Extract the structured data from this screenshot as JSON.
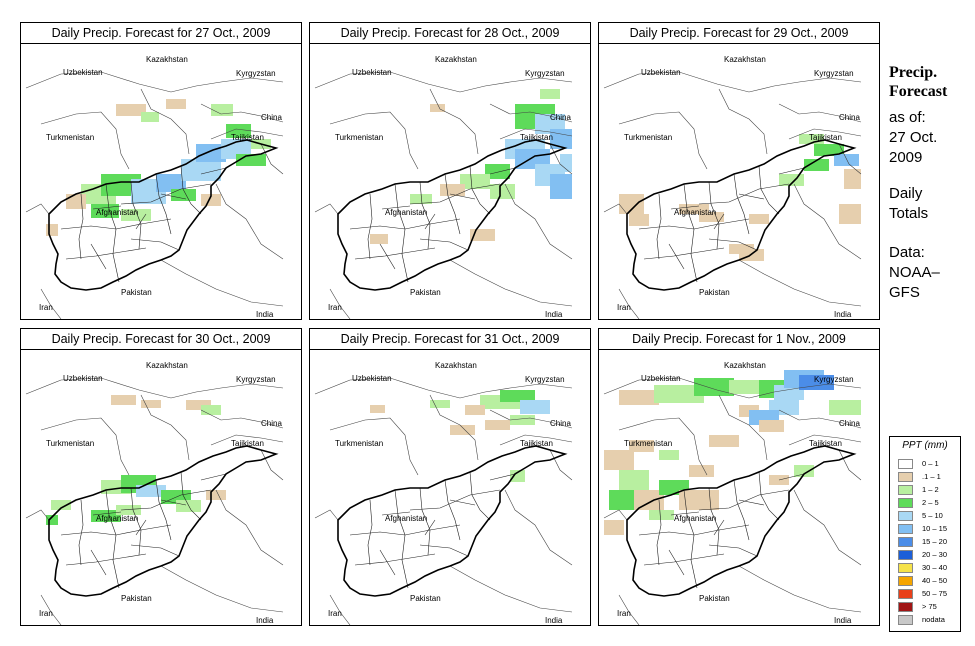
{
  "panels": [
    {
      "title": "Daily Precip. Forecast for  27 Oct., 2009",
      "intensity": "high-center"
    },
    {
      "title": "Daily Precip. Forecast for  28 Oct., 2009",
      "intensity": "northeast"
    },
    {
      "title": "Daily Precip. Forecast for  29 Oct., 2009",
      "intensity": "light"
    },
    {
      "title": "Daily Precip. Forecast for  30 Oct., 2009",
      "intensity": "center"
    },
    {
      "title": "Daily Precip. Forecast for  31 Oct., 2009",
      "intensity": "north-light"
    },
    {
      "title": "Daily Precip. Forecast for  1 Nov., 2009",
      "intensity": "north-heavy"
    }
  ],
  "country_labels": {
    "kazakhstan": "Kazakhstan",
    "uzbekistan": "Uzbekistan",
    "kyrgyzstan": "Kyrgyzstan",
    "china": "China",
    "turkmenistan": "Turkmenistan",
    "tajikistan": "Tajikistan",
    "afghanistan": "Afghanistan",
    "iran": "Iran",
    "pakistan": "Pakistan",
    "india": "India"
  },
  "sidebar": {
    "title_line1": "Precip.",
    "title_line2": "Forecast",
    "asof_line1": "as of:",
    "asof_line2": "27 Oct.",
    "asof_line3": "2009",
    "totals_line1": "Daily",
    "totals_line2": "Totals",
    "data_line1": "Data:",
    "data_line2": "NOAA–",
    "data_line3": "GFS"
  },
  "legend": {
    "title": "PPT (mm)",
    "items": [
      {
        "label": "0 – 1",
        "color": "#ffffff"
      },
      {
        "label": ".1 – 1",
        "color": "#e6cfae"
      },
      {
        "label": "1 – 2",
        "color": "#b8efa0"
      },
      {
        "label": "2 – 5",
        "color": "#5edb5a"
      },
      {
        "label": "5 – 10",
        "color": "#a9d8f4"
      },
      {
        "label": "10 – 15",
        "color": "#82bff2"
      },
      {
        "label": "15 – 20",
        "color": "#4b8de8"
      },
      {
        "label": "20 – 30",
        "color": "#1c5fd8"
      },
      {
        "label": "30 – 40",
        "color": "#f5e24a"
      },
      {
        "label": "40 – 50",
        "color": "#f5a500"
      },
      {
        "label": "50 – 75",
        "color": "#e8401a"
      },
      {
        "label": "> 75",
        "color": "#a01515"
      },
      {
        "label": "nodata",
        "color": "#c8c8c8"
      }
    ]
  }
}
